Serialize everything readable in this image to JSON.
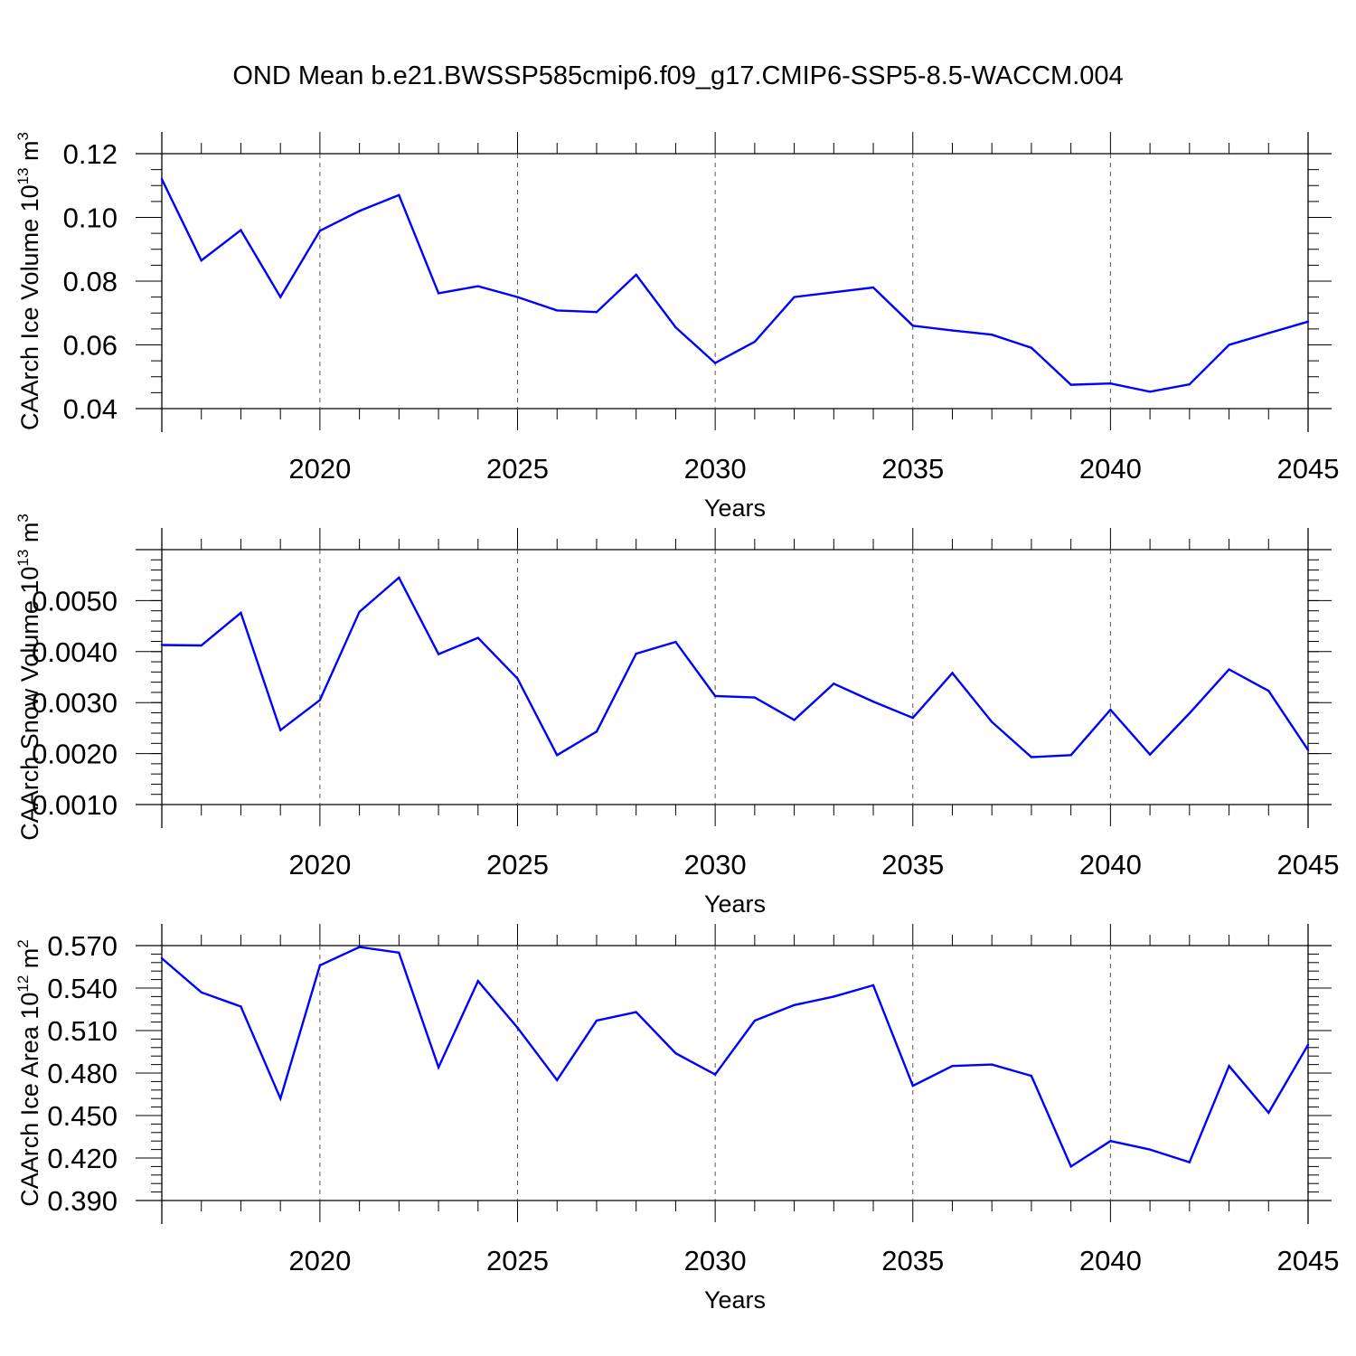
{
  "title": "OND Mean b.e21.BWSSP585cmip6.f09_g17.CMIP6-SSP5-8.5-WACCM.004",
  "colors": {
    "line": "#0000ff",
    "axis": "#000000",
    "grid": "#555555"
  },
  "chart_data": [
    {
      "type": "line",
      "ylabel_main": "CAArch Ice Volume 10",
      "ylabel_exp": "13",
      "ylabel_unit": "m",
      "ylabel_unit_exp": "3",
      "xlabel": "Years",
      "xlim": [
        2016,
        2045
      ],
      "ylim": [
        0.04,
        0.12
      ],
      "yticks": [
        0.04,
        0.06,
        0.08,
        0.1,
        0.12
      ],
      "ytick_labels": [
        "0.04",
        "0.06",
        "0.08",
        "0.10",
        "0.12"
      ],
      "yminor_step": 0.005,
      "xticks": [
        2020,
        2025,
        2030,
        2035,
        2040,
        2045
      ],
      "xtick_labels": [
        "2020",
        "2025",
        "2030",
        "2035",
        "2040",
        "2045"
      ],
      "x": [
        2016,
        2017,
        2018,
        2019,
        2020,
        2021,
        2022,
        2023,
        2024,
        2025,
        2026,
        2027,
        2028,
        2029,
        2030,
        2031,
        2032,
        2033,
        2034,
        2035,
        2036,
        2037,
        2038,
        2039,
        2040,
        2041,
        2042,
        2043,
        2044,
        2045
      ],
      "values": [
        0.112,
        0.0865,
        0.096,
        0.075,
        0.0958,
        0.102,
        0.107,
        0.0762,
        0.0784,
        0.075,
        0.0708,
        0.0703,
        0.082,
        0.0655,
        0.0543,
        0.061,
        0.075,
        0.0765,
        0.078,
        0.066,
        0.0645,
        0.0632,
        0.0591,
        0.0475,
        0.0479,
        0.0453,
        0.0476,
        0.06,
        0.0637,
        0.0673
      ]
    },
    {
      "type": "line",
      "ylabel_main": "CAArch Snow Volume 10",
      "ylabel_exp": "13",
      "ylabel_unit": "m",
      "ylabel_unit_exp": "3",
      "xlabel": "Years",
      "xlim": [
        2016,
        2045
      ],
      "ylim": [
        0.001,
        0.006
      ],
      "yticks": [
        0.001,
        0.002,
        0.003,
        0.004,
        0.005
      ],
      "ytick_labels": [
        "0.0010",
        "0.0020",
        "0.0030",
        "0.0040",
        "0.0050"
      ],
      "yminor_step": 0.0002,
      "xticks": [
        2020,
        2025,
        2030,
        2035,
        2040,
        2045
      ],
      "xtick_labels": [
        "2020",
        "2025",
        "2030",
        "2035",
        "2040",
        "2045"
      ],
      "x": [
        2016,
        2017,
        2018,
        2019,
        2020,
        2021,
        2022,
        2023,
        2024,
        2025,
        2026,
        2027,
        2028,
        2029,
        2030,
        2031,
        2032,
        2033,
        2034,
        2035,
        2036,
        2037,
        2038,
        2039,
        2040,
        2041,
        2042,
        2043,
        2044,
        2045
      ],
      "values": [
        0.00413,
        0.00412,
        0.00476,
        0.00246,
        0.00305,
        0.00478,
        0.00545,
        0.00395,
        0.00427,
        0.00347,
        0.00197,
        0.00243,
        0.00396,
        0.00419,
        0.00313,
        0.0031,
        0.00266,
        0.00337,
        0.00302,
        0.0027,
        0.00358,
        0.00262,
        0.00193,
        0.00197,
        0.00286,
        0.00198,
        0.00279,
        0.00365,
        0.00323,
        0.00207
      ]
    },
    {
      "type": "line",
      "ylabel_main": "CAArch Ice Area 10",
      "ylabel_exp": "12",
      "ylabel_unit": "m",
      "ylabel_unit_exp": "2",
      "xlabel": "Years",
      "xlim": [
        2016,
        2045
      ],
      "ylim": [
        0.39,
        0.57
      ],
      "yticks": [
        0.39,
        0.42,
        0.45,
        0.48,
        0.51,
        0.54,
        0.57
      ],
      "ytick_labels": [
        "0.390",
        "0.420",
        "0.450",
        "0.480",
        "0.510",
        "0.540",
        "0.570"
      ],
      "yminor_step": 0.006,
      "xticks": [
        2020,
        2025,
        2030,
        2035,
        2040,
        2045
      ],
      "xtick_labels": [
        "2020",
        "2025",
        "2030",
        "2035",
        "2040",
        "2045"
      ],
      "x": [
        2016,
        2017,
        2018,
        2019,
        2020,
        2021,
        2022,
        2023,
        2024,
        2025,
        2026,
        2027,
        2028,
        2029,
        2030,
        2031,
        2032,
        2033,
        2034,
        2035,
        2036,
        2037,
        2038,
        2039,
        2040,
        2041,
        2042,
        2043,
        2044,
        2045
      ],
      "values": [
        0.561,
        0.537,
        0.527,
        0.462,
        0.556,
        0.569,
        0.565,
        0.484,
        0.545,
        0.512,
        0.475,
        0.517,
        0.523,
        0.494,
        0.479,
        0.517,
        0.528,
        0.534,
        0.542,
        0.471,
        0.485,
        0.486,
        0.478,
        0.414,
        0.432,
        0.426,
        0.417,
        0.485,
        0.452,
        0.5
      ]
    }
  ]
}
